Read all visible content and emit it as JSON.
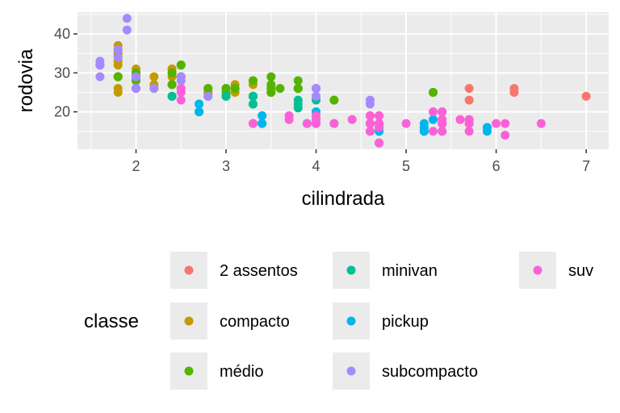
{
  "chart_data": {
    "type": "scatter",
    "title": "",
    "xlabel": "cilindrada",
    "ylabel": "rodovia",
    "xlim": [
      1.35,
      7.25
    ],
    "ylim": [
      10.4,
      45.6
    ],
    "xticks": [
      2,
      3,
      4,
      5,
      6,
      7
    ],
    "yticks": [
      20,
      30,
      40
    ],
    "grid": true,
    "legend": {
      "title": "classe",
      "placement": "bottom",
      "entries": [
        {
          "label": "2 assentos",
          "color": "#F8766D"
        },
        {
          "label": "compacto",
          "color": "#C49A00"
        },
        {
          "label": "médio",
          "color": "#53B400"
        },
        {
          "label": "minivan",
          "color": "#00C094"
        },
        {
          "label": "pickup",
          "color": "#00B6EB"
        },
        {
          "label": "subcompacto",
          "color": "#A58AFF"
        },
        {
          "label": "suv",
          "color": "#FB61D7"
        }
      ]
    },
    "series": [
      {
        "name": "2 assentos",
        "color": "#F8766D",
        "points": [
          [
            5.7,
            26
          ],
          [
            5.7,
            23
          ],
          [
            6.2,
            26
          ],
          [
            6.2,
            25
          ],
          [
            7.0,
            24
          ]
        ]
      },
      {
        "name": "compacto",
        "color": "#C49A00",
        "points": [
          [
            1.8,
            29
          ],
          [
            1.8,
            29
          ],
          [
            2.0,
            31
          ],
          [
            2.0,
            30
          ],
          [
            2.8,
            26
          ],
          [
            2.8,
            26
          ],
          [
            3.1,
            27
          ],
          [
            1.8,
            26
          ],
          [
            1.8,
            25
          ],
          [
            2.0,
            28
          ],
          [
            2.0,
            29
          ],
          [
            2.8,
            25
          ],
          [
            2.8,
            25
          ],
          [
            3.1,
            25
          ],
          [
            2.2,
            27
          ],
          [
            2.2,
            29
          ],
          [
            2.4,
            31
          ],
          [
            2.4,
            31
          ],
          [
            3.0,
            26
          ],
          [
            1.8,
            33
          ],
          [
            1.8,
            35
          ],
          [
            1.8,
            37
          ],
          [
            1.8,
            35
          ],
          [
            1.8,
            29
          ],
          [
            2.5,
            29
          ],
          [
            2.5,
            29
          ],
          [
            2.4,
            30
          ],
          [
            2.4,
            29
          ],
          [
            3.3,
            28
          ],
          [
            3.3,
            27
          ],
          [
            2.4,
            27
          ],
          [
            2.4,
            27
          ],
          [
            2.2,
            26
          ],
          [
            2.2,
            26
          ],
          [
            1.8,
            34
          ],
          [
            1.8,
            36
          ],
          [
            1.8,
            32
          ],
          [
            2.0,
            29
          ],
          [
            3.0,
            26
          ]
        ]
      },
      {
        "name": "médio",
        "color": "#53B400",
        "points": [
          [
            2.4,
            27
          ],
          [
            2.4,
            30
          ],
          [
            3.1,
            26
          ],
          [
            3.5,
            29
          ],
          [
            3.6,
            26
          ],
          [
            2.4,
            24
          ],
          [
            3.0,
            24
          ],
          [
            3.3,
            22
          ],
          [
            3.3,
            24
          ],
          [
            3.3,
            24
          ],
          [
            3.3,
            28
          ],
          [
            3.8,
            26
          ],
          [
            3.8,
            26
          ],
          [
            4.0,
            26
          ],
          [
            2.5,
            32
          ],
          [
            2.5,
            32
          ],
          [
            2.5,
            29
          ],
          [
            2.5,
            32
          ],
          [
            3.5,
            27
          ],
          [
            3.5,
            26
          ],
          [
            3.0,
            26
          ],
          [
            3.0,
            25
          ],
          [
            3.5,
            25
          ],
          [
            2.8,
            24
          ],
          [
            3.5,
            25
          ],
          [
            3.5,
            25
          ],
          [
            3.8,
            28
          ],
          [
            3.8,
            26
          ],
          [
            3.8,
            26
          ],
          [
            4.2,
            23
          ],
          [
            4.2,
            23
          ],
          [
            5.3,
            25
          ],
          [
            5.3,
            25
          ],
          [
            2.0,
            28
          ],
          [
            2.0,
            29
          ],
          [
            2.8,
            26
          ],
          [
            1.8,
            29
          ],
          [
            1.8,
            29
          ],
          [
            2.0,
            30
          ],
          [
            2.0,
            30
          ],
          [
            2.0,
            29
          ]
        ]
      },
      {
        "name": "minivan",
        "color": "#00C094",
        "points": [
          [
            2.4,
            24
          ],
          [
            3.0,
            24
          ],
          [
            3.3,
            22
          ],
          [
            3.3,
            22
          ],
          [
            3.3,
            24
          ],
          [
            3.3,
            24
          ],
          [
            3.3,
            17
          ],
          [
            3.8,
            22
          ],
          [
            3.8,
            21
          ],
          [
            3.8,
            23
          ],
          [
            4.0,
            23
          ]
        ]
      },
      {
        "name": "pickup",
        "color": "#00B6EB",
        "points": [
          [
            2.7,
            20
          ],
          [
            2.7,
            20
          ],
          [
            2.7,
            22
          ],
          [
            3.4,
            17
          ],
          [
            3.4,
            19
          ],
          [
            4.0,
            20
          ],
          [
            4.0,
            17
          ],
          [
            4.7,
            17
          ],
          [
            4.7,
            16
          ],
          [
            4.7,
            15
          ],
          [
            5.2,
            15
          ],
          [
            5.2,
            16
          ],
          [
            5.7,
            17
          ],
          [
            5.9,
            15
          ],
          [
            3.9,
            17
          ],
          [
            3.9,
            17
          ],
          [
            4.7,
            12
          ],
          [
            4.7,
            17
          ],
          [
            4.7,
            16
          ],
          [
            5.2,
            15
          ],
          [
            5.7,
            17
          ],
          [
            5.9,
            16
          ],
          [
            4.7,
            12
          ],
          [
            4.7,
            15
          ],
          [
            4.7,
            17
          ],
          [
            4.7,
            17
          ],
          [
            5.2,
            17
          ],
          [
            5.2,
            16
          ],
          [
            4.6,
            17
          ],
          [
            5.4,
            17
          ],
          [
            5.4,
            15
          ],
          [
            2.7,
            20
          ],
          [
            2.7,
            20
          ],
          [
            2.7,
            22
          ],
          [
            3.4,
            17
          ],
          [
            3.4,
            19
          ],
          [
            4.0,
            20
          ],
          [
            4.0,
            18
          ],
          [
            4.2,
            17
          ],
          [
            5.3,
            18
          ]
        ]
      },
      {
        "name": "subcompacto",
        "color": "#A58AFF",
        "points": [
          [
            1.6,
            33
          ],
          [
            1.6,
            32
          ],
          [
            1.6,
            32
          ],
          [
            1.6,
            29
          ],
          [
            1.6,
            32
          ],
          [
            1.8,
            34
          ],
          [
            1.8,
            36
          ],
          [
            1.8,
            36
          ],
          [
            2.0,
            29
          ],
          [
            2.0,
            26
          ],
          [
            2.2,
            26
          ],
          [
            2.5,
            28
          ],
          [
            2.5,
            26
          ],
          [
            2.5,
            29
          ],
          [
            2.8,
            24
          ],
          [
            1.9,
            44
          ],
          [
            1.9,
            41
          ],
          [
            2.0,
            26
          ],
          [
            2.0,
            26
          ],
          [
            4.0,
            26
          ],
          [
            4.0,
            24
          ],
          [
            4.0,
            26
          ],
          [
            4.6,
            23
          ],
          [
            4.6,
            22
          ],
          [
            5.4,
            20
          ],
          [
            2.5,
            26
          ]
        ]
      },
      {
        "name": "suv",
        "color": "#FB61D7",
        "points": [
          [
            5.3,
            20
          ],
          [
            5.3,
            15
          ],
          [
            5.3,
            20
          ],
          [
            5.7,
            17
          ],
          [
            6.0,
            17
          ],
          [
            5.7,
            18
          ],
          [
            6.5,
            17
          ],
          [
            4.2,
            17
          ],
          [
            4.4,
            18
          ],
          [
            4.6,
            19
          ],
          [
            5.4,
            17
          ],
          [
            5.4,
            18
          ],
          [
            5.4,
            20
          ],
          [
            4.0,
            19
          ],
          [
            4.0,
            17
          ],
          [
            4.6,
            17
          ],
          [
            5.0,
            17
          ],
          [
            4.7,
            19
          ],
          [
            4.7,
            19
          ],
          [
            4.7,
            12
          ],
          [
            5.7,
            17
          ],
          [
            6.1,
            14
          ],
          [
            4.7,
            17
          ],
          [
            4.7,
            12
          ],
          [
            5.7,
            18
          ],
          [
            3.7,
            19
          ],
          [
            3.7,
            18
          ],
          [
            3.9,
            17
          ],
          [
            4.7,
            17
          ],
          [
            4.7,
            19
          ],
          [
            2.5,
            23
          ],
          [
            2.5,
            25
          ],
          [
            3.3,
            17
          ],
          [
            3.3,
            17
          ],
          [
            4.0,
            18
          ],
          [
            4.0,
            17
          ],
          [
            4.7,
            17
          ],
          [
            4.7,
            16
          ],
          [
            2.5,
            26
          ],
          [
            4.6,
            15
          ],
          [
            5.4,
            17
          ],
          [
            5.6,
            18
          ],
          [
            5.7,
            15
          ],
          [
            6.1,
            17
          ],
          [
            4.6,
            17
          ],
          [
            5.4,
            18
          ],
          [
            5.4,
            17
          ],
          [
            4.6,
            19
          ],
          [
            4.6,
            17
          ],
          [
            4.6,
            15
          ],
          [
            5.4,
            15
          ]
        ]
      }
    ]
  }
}
